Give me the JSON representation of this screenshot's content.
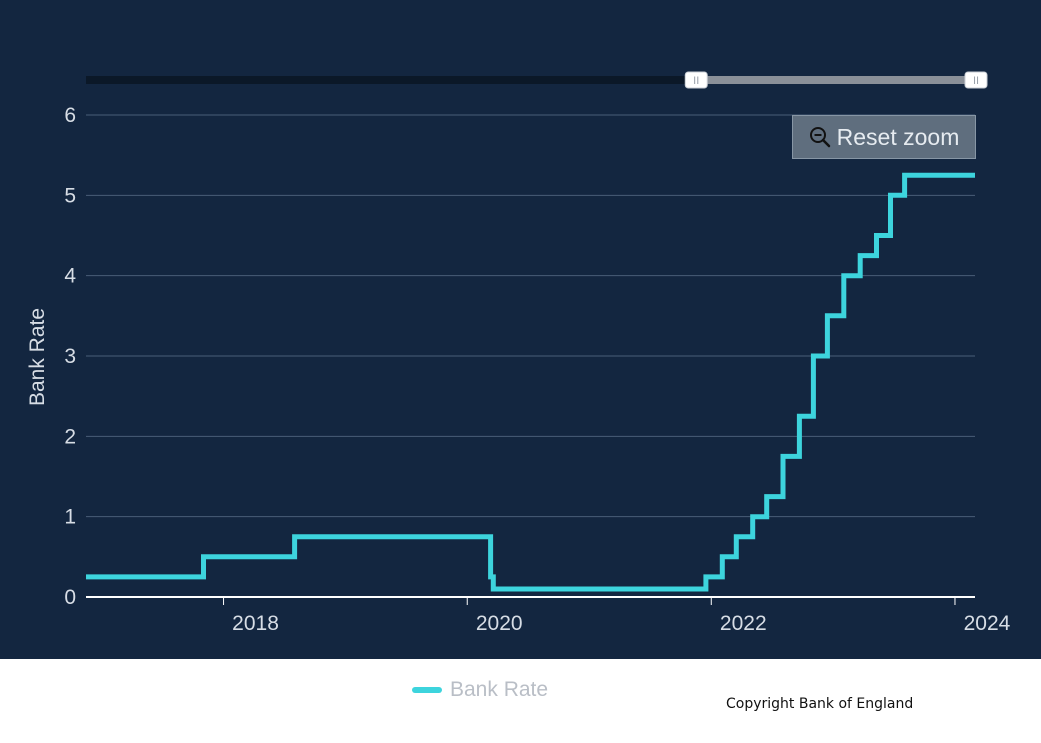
{
  "colors": {
    "panel_background": "#132640",
    "series": "#3dd4dd",
    "gridline": "#4a5d77",
    "axis_line": "#ffffff",
    "navigator_track": "#0b1828",
    "navigator_selection": "#8a9099"
  },
  "reset_zoom": {
    "label": "Reset zoom",
    "icon": "zoom-out-icon"
  },
  "copyright": "Copyright Bank of England",
  "navigator": {
    "selected_start": "2021-11-17",
    "selected_end": "2024-03-01",
    "handle_glyph": "II"
  },
  "chart_data": {
    "type": "line",
    "step": true,
    "title": "",
    "xlabel": "",
    "ylabel": "Bank Rate",
    "x_range": [
      "2016-11-15",
      "2024-03-01"
    ],
    "ylim": [
      0,
      6
    ],
    "x_ticks": [
      "2018",
      "2020",
      "2022",
      "2024"
    ],
    "y_ticks": [
      "0",
      "1",
      "2",
      "3",
      "4",
      "5",
      "6"
    ],
    "grid": true,
    "legend_position": "bottom-center",
    "series": [
      {
        "name": "Bank Rate",
        "points": [
          [
            "2016-11-15",
            0.25
          ],
          [
            "2017-11-02",
            0.5
          ],
          [
            "2018-08-02",
            0.75
          ],
          [
            "2020-03-11",
            0.25
          ],
          [
            "2020-03-19",
            0.1
          ],
          [
            "2021-12-16",
            0.25
          ],
          [
            "2022-02-03",
            0.5
          ],
          [
            "2022-03-17",
            0.75
          ],
          [
            "2022-05-05",
            1.0
          ],
          [
            "2022-06-16",
            1.25
          ],
          [
            "2022-08-04",
            1.75
          ],
          [
            "2022-09-22",
            2.25
          ],
          [
            "2022-11-03",
            3.0
          ],
          [
            "2022-12-15",
            3.5
          ],
          [
            "2023-02-02",
            4.0
          ],
          [
            "2023-03-23",
            4.25
          ],
          [
            "2023-05-11",
            4.5
          ],
          [
            "2023-06-22",
            5.0
          ],
          [
            "2023-08-03",
            5.25
          ],
          [
            "2024-03-01",
            5.25
          ]
        ]
      }
    ]
  }
}
